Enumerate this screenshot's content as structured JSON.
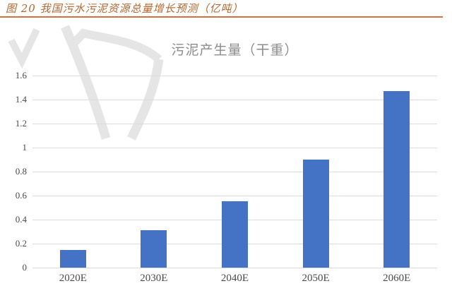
{
  "figure": {
    "caption": "图 20 我国污水污泥资源总量增长预测（亿吨）"
  },
  "colors": {
    "caption_text": "#b3672f",
    "caption_rule": "#d3713a",
    "chart_title": "#8c8c8c",
    "bar": "#4472c4",
    "gridline": "#dcdcdc",
    "axis_text": "#4a4a4a",
    "watermark": "#e5e5e5"
  },
  "chart_data": {
    "type": "bar",
    "title": "污泥产生量（干重）",
    "unit": "亿吨",
    "categories": [
      "2020E",
      "2030E",
      "2040E",
      "2050E",
      "2060E"
    ],
    "values": [
      0.15,
      0.31,
      0.55,
      0.9,
      1.47
    ],
    "ylim": [
      0,
      1.6
    ],
    "ytick_step": 0.2,
    "ytick_labels": [
      "0",
      "0.2",
      "0.4",
      "0.6",
      "0.8",
      "1",
      "1.2",
      "1.4",
      "1.6"
    ],
    "xlabel": "",
    "ylabel": "",
    "grid": true,
    "legend": "none"
  }
}
